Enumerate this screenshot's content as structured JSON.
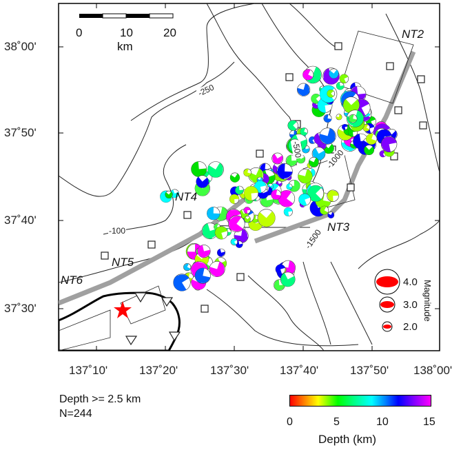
{
  "scale_bar": {
    "ticks": [
      "0",
      "10",
      "20"
    ],
    "unit": "km"
  },
  "lat_labels": [
    "38˚00'",
    "37˚50'",
    "37˚40'",
    "37˚30'"
  ],
  "lon_labels": [
    "137˚10'",
    "137˚20'",
    "137˚30'",
    "137˚40'",
    "137˚50'",
    "138˚00'"
  ],
  "faults": [
    "NT2",
    "NT3",
    "NT4",
    "NT5",
    "NT6"
  ],
  "contours": [
    "-250",
    "-500",
    "-1000",
    "-1500",
    "-100"
  ],
  "magnitude_legend": {
    "title": "Magnitude",
    "values": [
      "4.0",
      "3.0",
      "2.0"
    ]
  },
  "depth_colorbar": {
    "ticks": [
      "0",
      "5",
      "10",
      "15"
    ],
    "title": "Depth (km)"
  },
  "notes": {
    "depth": "Depth >= 2.5 km",
    "count": "N=244"
  },
  "colors": {
    "fault_zone": "#a0a0a0",
    "epicenter_star": "#ff0000",
    "coast": "#000000"
  }
}
